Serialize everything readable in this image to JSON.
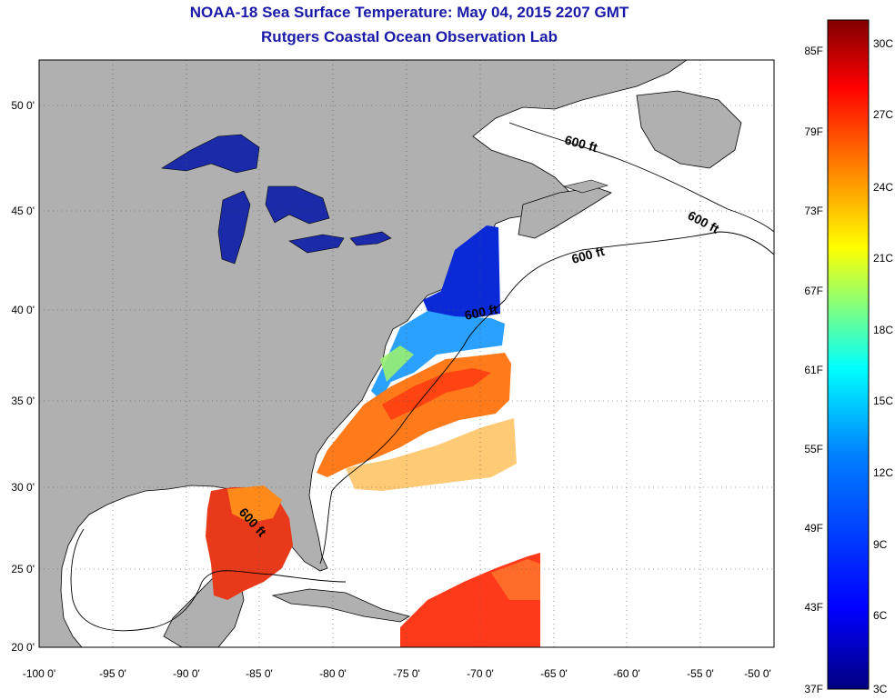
{
  "title": "NOAA-18 Sea Surface Temperature:  May 04, 2015 2207 GMT",
  "subtitle": "Rutgers Coastal Ocean Observation Lab",
  "map": {
    "lon_min": -100,
    "lon_max": -50,
    "lat_min": 20,
    "lat_max": 52.5,
    "lon_ticks": [
      "-100 0'",
      "-95 0'",
      "-90 0'",
      "-85 0'",
      "-80 0'",
      "-75 0'",
      "-70 0'",
      "-65 0'",
      "-60 0'",
      "-55 0'",
      "-50 0'"
    ],
    "lat_ticks": [
      "20 0'",
      "25 0'",
      "30 0'",
      "35 0'",
      "40 0'",
      "45 0'",
      "50 0'"
    ],
    "contour_labels": [
      "600 ft",
      "600 ft",
      "600 ft",
      "600 ft",
      "600 ft"
    ],
    "colors": {
      "land": "#b0b0b0",
      "no_data": "#ffffff",
      "coastline": "#000000"
    }
  },
  "colorbar": {
    "f_labels": [
      "85F",
      "79F",
      "73F",
      "67F",
      "61F",
      "55F",
      "49F",
      "43F",
      "37F"
    ],
    "c_labels": [
      "30C",
      "27C",
      "24C",
      "21C",
      "18C",
      "15C",
      "12C",
      "9C",
      "6C",
      "3C"
    ],
    "colors": [
      "#000080",
      "#0000ff",
      "#0080ff",
      "#00ffff",
      "#80ff80",
      "#ffff00",
      "#ff8000",
      "#ff0000",
      "#800000"
    ]
  }
}
